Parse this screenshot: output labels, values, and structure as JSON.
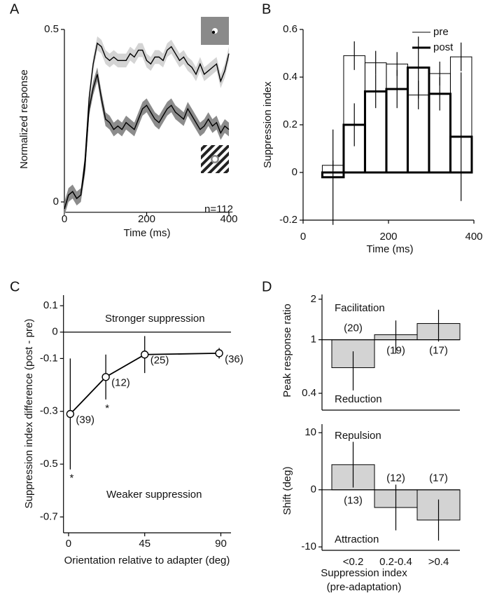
{
  "chart_data": [
    {
      "type": "line",
      "panel_label": "A",
      "ylabel": "Normalized response",
      "xlabel": "Time (ms)",
      "annotation": "n=112",
      "x": [
        0,
        10,
        20,
        30,
        40,
        50,
        60,
        70,
        80,
        90,
        100,
        110,
        120,
        130,
        140,
        150,
        160,
        170,
        180,
        190,
        200,
        210,
        220,
        230,
        240,
        250,
        260,
        270,
        280,
        290,
        300,
        310,
        320,
        330,
        340,
        350,
        360,
        370,
        380,
        390,
        400
      ],
      "series": [
        {
          "color": "#000000",
          "band_color": "#d4d4d4",
          "error": 0.02,
          "values": [
            -0.02,
            0.02,
            0.03,
            0.01,
            0.02,
            0.12,
            0.3,
            0.4,
            0.46,
            0.45,
            0.42,
            0.41,
            0.42,
            0.41,
            0.41,
            0.41,
            0.43,
            0.42,
            0.44,
            0.44,
            0.41,
            0.4,
            0.42,
            0.42,
            0.41,
            0.44,
            0.45,
            0.43,
            0.41,
            0.42,
            0.4,
            0.39,
            0.37,
            0.4,
            0.37,
            0.38,
            0.39,
            0.4,
            0.35,
            0.38,
            0.43
          ]
        },
        {
          "color": "#000000",
          "band_color": "#8c8c8c",
          "error": 0.02,
          "values": [
            -0.02,
            0.02,
            0.03,
            0.01,
            0.02,
            0.1,
            0.27,
            0.33,
            0.37,
            0.3,
            0.24,
            0.23,
            0.21,
            0.22,
            0.21,
            0.23,
            0.22,
            0.21,
            0.24,
            0.27,
            0.28,
            0.26,
            0.24,
            0.23,
            0.25,
            0.27,
            0.28,
            0.26,
            0.25,
            0.24,
            0.27,
            0.25,
            0.23,
            0.21,
            0.22,
            0.24,
            0.22,
            0.23,
            0.2,
            0.22,
            0.21
          ]
        }
      ],
      "xlim": [
        0,
        400
      ],
      "ylim": [
        -0.03,
        0.5
      ],
      "xticks": [
        0,
        200,
        400
      ],
      "yticks": [
        0,
        0.5
      ]
    },
    {
      "type": "histogram",
      "panel_label": "B",
      "ylabel": "Suppression index",
      "xlabel": "Time (ms)",
      "bins": [
        45,
        95,
        145,
        195,
        245,
        295,
        345,
        395
      ],
      "series": [
        {
          "name": "pre",
          "color": "#000000",
          "line_width": 1,
          "values": [
            0.03,
            0.49,
            0.46,
            0.455,
            0.325,
            0.415,
            0.485
          ],
          "errors": [
            0.02,
            0.06,
            0.05,
            0.05,
            0.06,
            0.05,
            0.06
          ]
        },
        {
          "name": "post",
          "color": "#000000",
          "line_width": 3,
          "values": [
            -0.02,
            0.2,
            0.34,
            0.35,
            0.44,
            0.33,
            0.15
          ],
          "errors": [
            0.2,
            0.09,
            0.07,
            0.08,
            0.13,
            0.07,
            0.27
          ]
        }
      ],
      "xlim": [
        0,
        400
      ],
      "ylim": [
        -0.2,
        0.6
      ],
      "xticks": [
        0,
        200,
        400
      ],
      "yticks": [
        -0.2,
        0,
        0.2,
        0.4,
        0.6
      ],
      "legend": "upper right"
    },
    {
      "type": "line",
      "panel_label": "C",
      "ylabel": "Suppression index difference (post - pre)",
      "xlabel": "Orientation relative to adapter (deg)",
      "text_upper": "Stronger suppression",
      "text_lower": "Weaker suppression",
      "x": [
        1,
        22,
        45,
        89
      ],
      "values": [
        -0.31,
        -0.17,
        -0.085,
        -0.08
      ],
      "errors": [
        0.21,
        0.085,
        0.07,
        0.02
      ],
      "point_labels": [
        "(39)",
        "(12)",
        "(25)",
        "(36)"
      ],
      "point_marks": [
        "*",
        "*"
      ],
      "color": "#000000",
      "markers": true,
      "reference_line": 0,
      "xlim": [
        -3,
        96
      ],
      "ylim": [
        -0.76,
        0.14
      ],
      "xticks": [
        0,
        45,
        90
      ],
      "yticks": [
        0.1,
        0,
        -0.1,
        -0.3,
        -0.5,
        -0.7
      ]
    },
    {
      "type": "bar",
      "panel_label": "D",
      "ylabel": "Peak response ratio",
      "text_upper": "Facilitation",
      "text_lower": "Reduction",
      "categories": [
        null,
        null,
        null
      ],
      "values": [
        0.62,
        1.09,
        1.32
      ],
      "errors": [
        0.2,
        0.3,
        0.35
      ],
      "bar_labels": [
        "(20)",
        "(19)",
        "(17)"
      ],
      "baseline": 1,
      "log_y": true,
      "color": "#d3d3d3",
      "ylim": [
        0.3,
        2.17
      ],
      "yticks": [
        2,
        1,
        0.4
      ]
    },
    {
      "type": "bar",
      "ylabel": "Shift (deg)",
      "xlabel": "Suppression index",
      "xlabel_line2": "(pre-adaptation)",
      "text_upper": "Repulsion",
      "text_lower": "Attraction",
      "categories": [
        "<0.2",
        "0.2-0.4",
        ">0.4"
      ],
      "values": [
        4.4,
        -3.1,
        -5.3
      ],
      "errors": [
        4,
        4,
        3.6
      ],
      "bar_labels": [
        "(13)",
        "(12)",
        "(17)"
      ],
      "baseline": 0,
      "color": "#d3d3d3",
      "ylim": [
        -10.6,
        11.5
      ],
      "yticks": [
        10,
        0,
        -10
      ]
    }
  ]
}
